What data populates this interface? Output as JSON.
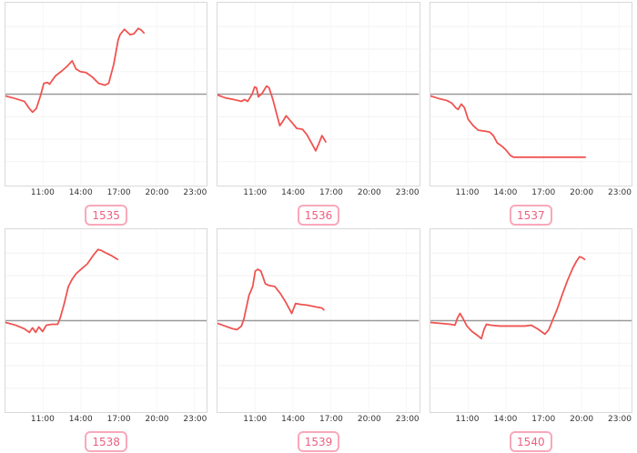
{
  "style": {
    "background": "#ffffff",
    "line_color": "#ef5350",
    "zero_line_color": "#999999",
    "grid_color": "#f2f2f2",
    "vgrid_color": "#f7f7f7",
    "panel_border_color": "#d9d9d9",
    "tick_text_color": "#333333",
    "badge_border_color": "#f8a8ba",
    "badge_text_color": "#ee5f7f"
  },
  "x_axis": {
    "domain_hours": [
      8,
      24
    ],
    "tick_hours": [
      11,
      14,
      17,
      20,
      23
    ],
    "tick_labels": [
      "11:00",
      "14:00",
      "17:00",
      "20:00",
      "23:00"
    ]
  },
  "chart_data": [
    {
      "type": "line",
      "badge": "1535",
      "ylim": [
        -1,
        1
      ],
      "x_range_hours": [
        8,
        24
      ],
      "zero_baseline": true,
      "points": [
        [
          8.0,
          -0.02
        ],
        [
          8.8,
          -0.05
        ],
        [
          9.5,
          -0.08
        ],
        [
          9.9,
          -0.16
        ],
        [
          10.15,
          -0.2
        ],
        [
          10.45,
          -0.16
        ],
        [
          10.8,
          -0.01
        ],
        [
          11.05,
          0.12
        ],
        [
          11.35,
          0.13
        ],
        [
          11.5,
          0.11
        ],
        [
          11.95,
          0.2
        ],
        [
          12.5,
          0.26
        ],
        [
          12.9,
          0.31
        ],
        [
          13.3,
          0.37
        ],
        [
          13.6,
          0.28
        ],
        [
          13.95,
          0.25
        ],
        [
          14.4,
          0.24
        ],
        [
          14.9,
          0.19
        ],
        [
          15.4,
          0.12
        ],
        [
          15.9,
          0.1
        ],
        [
          16.2,
          0.12
        ],
        [
          16.6,
          0.33
        ],
        [
          16.95,
          0.6
        ],
        [
          17.1,
          0.66
        ],
        [
          17.45,
          0.72
        ],
        [
          17.9,
          0.66
        ],
        [
          18.2,
          0.67
        ],
        [
          18.55,
          0.73
        ],
        [
          18.8,
          0.71
        ],
        [
          19.0,
          0.68
        ]
      ]
    },
    {
      "type": "line",
      "badge": "1536",
      "ylim": [
        -1,
        1
      ],
      "x_range_hours": [
        8,
        24
      ],
      "zero_baseline": true,
      "points": [
        [
          8.0,
          -0.01
        ],
        [
          8.6,
          -0.04
        ],
        [
          9.3,
          -0.06
        ],
        [
          9.9,
          -0.08
        ],
        [
          10.15,
          -0.06
        ],
        [
          10.4,
          -0.08
        ],
        [
          10.75,
          0.0
        ],
        [
          10.95,
          0.08
        ],
        [
          11.1,
          0.07
        ],
        [
          11.25,
          -0.03
        ],
        [
          11.55,
          0.01
        ],
        [
          11.9,
          0.09
        ],
        [
          12.1,
          0.07
        ],
        [
          12.4,
          -0.06
        ],
        [
          12.7,
          -0.22
        ],
        [
          12.95,
          -0.35
        ],
        [
          13.2,
          -0.3
        ],
        [
          13.45,
          -0.24
        ],
        [
          13.7,
          -0.28
        ],
        [
          14.0,
          -0.33
        ],
        [
          14.3,
          -0.38
        ],
        [
          14.75,
          -0.39
        ],
        [
          15.1,
          -0.45
        ],
        [
          15.5,
          -0.55
        ],
        [
          15.8,
          -0.63
        ],
        [
          16.05,
          -0.55
        ],
        [
          16.3,
          -0.46
        ],
        [
          16.6,
          -0.53
        ]
      ]
    },
    {
      "type": "line",
      "badge": "1537",
      "ylim": [
        -1,
        1
      ],
      "x_range_hours": [
        8,
        24
      ],
      "zero_baseline": true,
      "points": [
        [
          8.0,
          -0.02
        ],
        [
          8.7,
          -0.05
        ],
        [
          9.3,
          -0.07
        ],
        [
          9.7,
          -0.1
        ],
        [
          10.0,
          -0.15
        ],
        [
          10.2,
          -0.17
        ],
        [
          10.45,
          -0.11
        ],
        [
          10.7,
          -0.15
        ],
        [
          11.0,
          -0.28
        ],
        [
          11.4,
          -0.35
        ],
        [
          11.8,
          -0.4
        ],
        [
          12.3,
          -0.41
        ],
        [
          12.7,
          -0.42
        ],
        [
          13.0,
          -0.46
        ],
        [
          13.3,
          -0.54
        ],
        [
          13.7,
          -0.58
        ],
        [
          14.0,
          -0.62
        ],
        [
          14.35,
          -0.68
        ],
        [
          14.6,
          -0.7
        ],
        [
          15.0,
          -0.7
        ],
        [
          16.0,
          -0.7
        ],
        [
          17.0,
          -0.7
        ],
        [
          18.0,
          -0.7
        ],
        [
          19.0,
          -0.7
        ],
        [
          20.0,
          -0.7
        ],
        [
          20.3,
          -0.7
        ]
      ]
    },
    {
      "type": "line",
      "badge": "1538",
      "ylim": [
        -1,
        1
      ],
      "x_range_hours": [
        8,
        24
      ],
      "zero_baseline": true,
      "points": [
        [
          8.0,
          -0.02
        ],
        [
          8.8,
          -0.05
        ],
        [
          9.5,
          -0.09
        ],
        [
          9.9,
          -0.13
        ],
        [
          10.15,
          -0.08
        ],
        [
          10.4,
          -0.13
        ],
        [
          10.65,
          -0.07
        ],
        [
          10.95,
          -0.12
        ],
        [
          11.25,
          -0.05
        ],
        [
          11.7,
          -0.04
        ],
        [
          12.15,
          -0.04
        ],
        [
          12.35,
          0.03
        ],
        [
          12.65,
          0.18
        ],
        [
          13.0,
          0.38
        ],
        [
          13.3,
          0.46
        ],
        [
          13.6,
          0.52
        ],
        [
          14.0,
          0.57
        ],
        [
          14.5,
          0.63
        ],
        [
          15.0,
          0.73
        ],
        [
          15.35,
          0.79
        ],
        [
          15.6,
          0.78
        ],
        [
          16.0,
          0.75
        ],
        [
          16.45,
          0.72
        ],
        [
          16.9,
          0.68
        ]
      ]
    },
    {
      "type": "line",
      "badge": "1539",
      "ylim": [
        -1,
        1
      ],
      "x_range_hours": [
        8,
        24
      ],
      "zero_baseline": true,
      "points": [
        [
          8.0,
          -0.03
        ],
        [
          8.6,
          -0.06
        ],
        [
          9.2,
          -0.09
        ],
        [
          9.55,
          -0.1
        ],
        [
          9.9,
          -0.06
        ],
        [
          10.1,
          0.02
        ],
        [
          10.5,
          0.28
        ],
        [
          10.8,
          0.38
        ],
        [
          11.0,
          0.55
        ],
        [
          11.2,
          0.57
        ],
        [
          11.45,
          0.55
        ],
        [
          11.8,
          0.41
        ],
        [
          12.1,
          0.39
        ],
        [
          12.55,
          0.38
        ],
        [
          13.0,
          0.3
        ],
        [
          13.4,
          0.21
        ],
        [
          13.9,
          0.08
        ],
        [
          14.2,
          0.19
        ],
        [
          14.6,
          0.18
        ],
        [
          15.2,
          0.17
        ],
        [
          15.9,
          0.15
        ],
        [
          16.3,
          0.14
        ],
        [
          16.45,
          0.12
        ]
      ]
    },
    {
      "type": "line",
      "badge": "1540",
      "ylim": [
        -1,
        1
      ],
      "x_range_hours": [
        8,
        24
      ],
      "zero_baseline": true,
      "points": [
        [
          8.0,
          -0.02
        ],
        [
          8.8,
          -0.03
        ],
        [
          9.6,
          -0.04
        ],
        [
          9.95,
          -0.05
        ],
        [
          10.15,
          0.03
        ],
        [
          10.35,
          0.08
        ],
        [
          10.6,
          0.02
        ],
        [
          10.9,
          -0.06
        ],
        [
          11.3,
          -0.12
        ],
        [
          11.7,
          -0.16
        ],
        [
          12.05,
          -0.2
        ],
        [
          12.25,
          -0.1
        ],
        [
          12.45,
          -0.04
        ],
        [
          12.8,
          -0.05
        ],
        [
          13.5,
          -0.06
        ],
        [
          14.5,
          -0.06
        ],
        [
          15.5,
          -0.06
        ],
        [
          16.0,
          -0.05
        ],
        [
          16.5,
          -0.09
        ],
        [
          17.1,
          -0.15
        ],
        [
          17.4,
          -0.1
        ],
        [
          17.75,
          0.02
        ],
        [
          18.05,
          0.12
        ],
        [
          18.5,
          0.3
        ],
        [
          18.9,
          0.45
        ],
        [
          19.3,
          0.58
        ],
        [
          19.6,
          0.66
        ],
        [
          19.85,
          0.71
        ],
        [
          20.05,
          0.7
        ],
        [
          20.25,
          0.68
        ]
      ]
    }
  ]
}
